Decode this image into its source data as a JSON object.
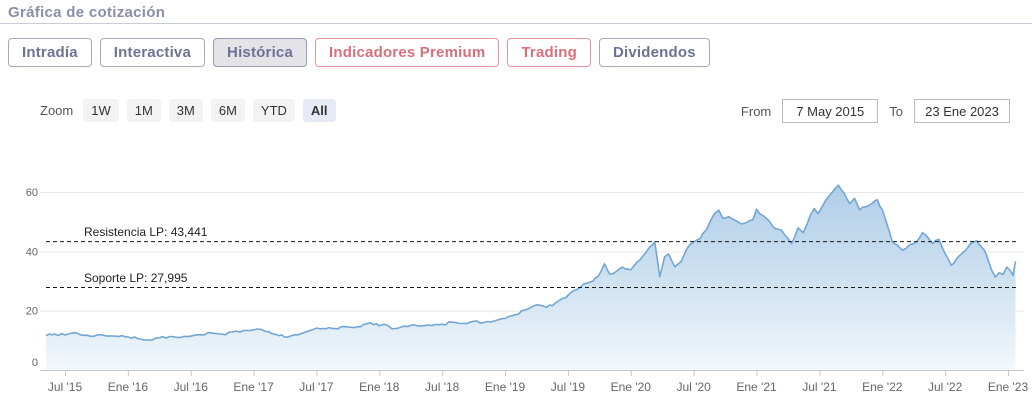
{
  "header": {
    "title": "Gráfica de cotización"
  },
  "tabs": [
    {
      "label": "Intradía",
      "active": false,
      "premium": false
    },
    {
      "label": "Interactiva",
      "active": false,
      "premium": false
    },
    {
      "label": "Histórica",
      "active": true,
      "premium": false
    },
    {
      "label": "Indicadores Premium",
      "active": false,
      "premium": true
    },
    {
      "label": "Trading",
      "active": false,
      "premium": true
    },
    {
      "label": "Dividendos",
      "active": false,
      "premium": false
    }
  ],
  "toolbar": {
    "zoom_label": "Zoom",
    "zoom_buttons": [
      "1W",
      "1M",
      "3M",
      "6M",
      "YTD",
      "All"
    ],
    "zoom_active": "All",
    "from_label": "From",
    "from_value": "7 May 2015",
    "to_label": "To",
    "to_value": "23 Ene 2023"
  },
  "chart_data": {
    "type": "area",
    "title": "",
    "xlabel": "",
    "ylabel": "",
    "ylim": [
      0,
      75
    ],
    "x_range_years": [
      2015.35,
      2023.06
    ],
    "grid": true,
    "legend": false,
    "y_ticks": [
      0,
      20,
      40,
      60
    ],
    "x_ticks": [
      {
        "t": 2015.5,
        "label": "Jul '15"
      },
      {
        "t": 2016.0,
        "label": "Ene '16"
      },
      {
        "t": 2016.5,
        "label": "Jul '16"
      },
      {
        "t": 2017.0,
        "label": "Ene '17"
      },
      {
        "t": 2017.5,
        "label": "Jul '17"
      },
      {
        "t": 2018.0,
        "label": "Ene '18"
      },
      {
        "t": 2018.5,
        "label": "Jul '18"
      },
      {
        "t": 2019.0,
        "label": "Ene '19"
      },
      {
        "t": 2019.5,
        "label": "Jul '19"
      },
      {
        "t": 2020.0,
        "label": "Ene '20"
      },
      {
        "t": 2020.5,
        "label": "Jul '20"
      },
      {
        "t": 2021.0,
        "label": "Ene '21"
      },
      {
        "t": 2021.5,
        "label": "Jul '21"
      },
      {
        "t": 2022.0,
        "label": "Ene '22"
      },
      {
        "t": 2022.5,
        "label": "Jul '22"
      },
      {
        "t": 2023.0,
        "label": "Ene '23"
      }
    ],
    "annotations": [
      {
        "label": "Resistencia LP: 43,441",
        "value": 43.441
      },
      {
        "label": "Soporte LP: 27,995",
        "value": 27.995
      }
    ],
    "colors": {
      "line": "#74a6d4",
      "fill_top": "#9dc2e2",
      "fill_bottom": "#f2f8fc",
      "grid": "#e7e7e7",
      "axis": "#c6c6c6",
      "annotation_line": "#1a1a1a"
    },
    "series": [
      {
        "name": "Cotización",
        "points": [
          [
            2015.35,
            11.6
          ],
          [
            2015.42,
            12.1
          ],
          [
            2015.5,
            11.8
          ],
          [
            2015.56,
            12.5
          ],
          [
            2015.62,
            11.9
          ],
          [
            2015.7,
            11.4
          ],
          [
            2015.78,
            11.9
          ],
          [
            2015.86,
            11.5
          ],
          [
            2015.93,
            11.3
          ],
          [
            2016.0,
            11.2
          ],
          [
            2016.08,
            10.6
          ],
          [
            2016.16,
            10.1
          ],
          [
            2016.25,
            10.9
          ],
          [
            2016.33,
            11.3
          ],
          [
            2016.42,
            11.0
          ],
          [
            2016.5,
            11.4
          ],
          [
            2016.58,
            11.9
          ],
          [
            2016.67,
            12.4
          ],
          [
            2016.75,
            12.1
          ],
          [
            2016.83,
            12.8
          ],
          [
            2016.92,
            13.3
          ],
          [
            2017.0,
            13.5
          ],
          [
            2017.06,
            13.7
          ],
          [
            2017.12,
            12.9
          ],
          [
            2017.2,
            11.6
          ],
          [
            2017.27,
            11.1
          ],
          [
            2017.33,
            11.9
          ],
          [
            2017.4,
            12.6
          ],
          [
            2017.47,
            13.6
          ],
          [
            2017.53,
            13.9
          ],
          [
            2017.6,
            14.3
          ],
          [
            2017.67,
            13.9
          ],
          [
            2017.73,
            14.6
          ],
          [
            2017.8,
            14.3
          ],
          [
            2017.87,
            15.2
          ],
          [
            2017.93,
            15.9
          ],
          [
            2018.0,
            14.9
          ],
          [
            2018.04,
            15.4
          ],
          [
            2018.1,
            13.9
          ],
          [
            2018.17,
            14.4
          ],
          [
            2018.25,
            15.1
          ],
          [
            2018.33,
            14.8
          ],
          [
            2018.42,
            15.0
          ],
          [
            2018.5,
            15.4
          ],
          [
            2018.58,
            16.1
          ],
          [
            2018.67,
            15.7
          ],
          [
            2018.75,
            16.4
          ],
          [
            2018.83,
            16.0
          ],
          [
            2018.92,
            16.6
          ],
          [
            2019.0,
            17.4
          ],
          [
            2019.08,
            18.6
          ],
          [
            2019.16,
            20.2
          ],
          [
            2019.22,
            21.4
          ],
          [
            2019.28,
            21.8
          ],
          [
            2019.33,
            21.1
          ],
          [
            2019.4,
            22.6
          ],
          [
            2019.46,
            24.2
          ],
          [
            2019.5,
            25.1
          ],
          [
            2019.55,
            26.8
          ],
          [
            2019.6,
            27.9
          ],
          [
            2019.65,
            29.3
          ],
          [
            2019.7,
            30.0
          ],
          [
            2019.74,
            31.5
          ],
          [
            2019.79,
            35.8
          ],
          [
            2019.83,
            32.4
          ],
          [
            2019.88,
            33.1
          ],
          [
            2019.93,
            34.7
          ],
          [
            2020.0,
            33.8
          ],
          [
            2020.05,
            36.4
          ],
          [
            2020.1,
            38.6
          ],
          [
            2020.15,
            41.5
          ],
          [
            2020.19,
            43.2
          ],
          [
            2020.23,
            31.4
          ],
          [
            2020.27,
            38.2
          ],
          [
            2020.3,
            39.1
          ],
          [
            2020.35,
            34.8
          ],
          [
            2020.4,
            36.5
          ],
          [
            2020.45,
            41.2
          ],
          [
            2020.5,
            43.1
          ],
          [
            2020.55,
            44.3
          ],
          [
            2020.6,
            47.2
          ],
          [
            2020.65,
            51.6
          ],
          [
            2020.7,
            53.9
          ],
          [
            2020.73,
            51.2
          ],
          [
            2020.78,
            51.7
          ],
          [
            2020.83,
            50.5
          ],
          [
            2020.88,
            49.2
          ],
          [
            2020.93,
            49.9
          ],
          [
            2020.97,
            50.6
          ],
          [
            2021.0,
            54.2
          ],
          [
            2021.05,
            52.1
          ],
          [
            2021.1,
            50.3
          ],
          [
            2021.15,
            47.6
          ],
          [
            2021.2,
            47.1
          ],
          [
            2021.25,
            44.3
          ],
          [
            2021.28,
            42.6
          ],
          [
            2021.33,
            47.9
          ],
          [
            2021.37,
            46.3
          ],
          [
            2021.43,
            52.4
          ],
          [
            2021.46,
            54.4
          ],
          [
            2021.49,
            52.7
          ],
          [
            2021.55,
            57.2
          ],
          [
            2021.6,
            59.8
          ],
          [
            2021.65,
            62.3
          ],
          [
            2021.7,
            59.4
          ],
          [
            2021.74,
            56.1
          ],
          [
            2021.78,
            57.8
          ],
          [
            2021.82,
            54.0
          ],
          [
            2021.87,
            55.0
          ],
          [
            2021.92,
            56.2
          ],
          [
            2021.96,
            57.4
          ],
          [
            2022.0,
            54.0
          ],
          [
            2022.05,
            47.5
          ],
          [
            2022.08,
            43.2
          ],
          [
            2022.12,
            42.1
          ],
          [
            2022.16,
            40.4
          ],
          [
            2022.22,
            42.3
          ],
          [
            2022.27,
            43.1
          ],
          [
            2022.32,
            46.3
          ],
          [
            2022.36,
            44.8
          ],
          [
            2022.4,
            42.6
          ],
          [
            2022.45,
            44.1
          ],
          [
            2022.5,
            39.2
          ],
          [
            2022.55,
            35.3
          ],
          [
            2022.59,
            37.5
          ],
          [
            2022.63,
            39.1
          ],
          [
            2022.68,
            41.3
          ],
          [
            2022.72,
            43.0
          ],
          [
            2022.75,
            43.6
          ],
          [
            2022.79,
            41.5
          ],
          [
            2022.83,
            38.7
          ],
          [
            2022.87,
            33.6
          ],
          [
            2022.9,
            31.3
          ],
          [
            2022.93,
            32.8
          ],
          [
            2022.96,
            32.2
          ],
          [
            2022.99,
            34.7
          ],
          [
            2023.02,
            33.4
          ],
          [
            2023.04,
            31.9
          ],
          [
            2023.06,
            36.6
          ]
        ]
      }
    ]
  }
}
